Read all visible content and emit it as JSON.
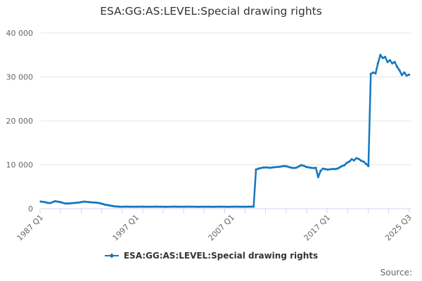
{
  "colors": {
    "series": "#1478be",
    "grid": "#e6e6e6",
    "axis": "#ccd6eb",
    "tick_text": "#666666",
    "title_text": "#333333",
    "legend_text": "#333333",
    "source_text": "#666666",
    "background": "#ffffff"
  },
  "source": {
    "text": "Source:"
  },
  "chart_data": {
    "type": "line",
    "title": "ESA:GG:AS:LEVEL:Special drawing rights",
    "xlabel": "",
    "ylabel": "",
    "x_start": "1987 Q1",
    "x_end": "2025 Q3",
    "frequency": "quarterly",
    "grid": true,
    "legend_position": "bottom",
    "y": {
      "range": [
        0,
        40000
      ],
      "ticks": [
        {
          "value": 0,
          "label": "0"
        },
        {
          "value": 10000,
          "label": "10 000"
        },
        {
          "value": 20000,
          "label": "20 000"
        },
        {
          "value": 30000,
          "label": "30 000"
        },
        {
          "value": 40000,
          "label": "40 000"
        }
      ]
    },
    "x": {
      "minor_tick_count": 19,
      "tick_labels": [
        {
          "text": "1987 Q1",
          "index": 0
        },
        {
          "text": "1997 Q1",
          "index": 40
        },
        {
          "text": "2007 Q1",
          "index": 80
        },
        {
          "text": "2017 Q1",
          "index": 120
        },
        {
          "text": "2025 Q3",
          "index": 154
        }
      ]
    },
    "series": [
      {
        "name": "ESA:GG:AS:LEVEL:Special drawing rights",
        "color": "#1478be",
        "values": [
          1600,
          1550,
          1450,
          1300,
          1280,
          1500,
          1700,
          1600,
          1500,
          1350,
          1200,
          1170,
          1200,
          1250,
          1300,
          1350,
          1400,
          1490,
          1600,
          1550,
          1500,
          1450,
          1400,
          1390,
          1300,
          1200,
          1050,
          900,
          800,
          700,
          600,
          520,
          480,
          450,
          440,
          450,
          460,
          450,
          440,
          430,
          440,
          450,
          460,
          450,
          440,
          430,
          440,
          450,
          460,
          450,
          440,
          430,
          420,
          430,
          440,
          450,
          460,
          450,
          440,
          430,
          440,
          450,
          460,
          450,
          440,
          430,
          420,
          430,
          440,
          450,
          440,
          430,
          420,
          430,
          440,
          450,
          440,
          430,
          420,
          430,
          440,
          450,
          460,
          450,
          440,
          430,
          440,
          460,
          450,
          470,
          8900,
          9100,
          9250,
          9350,
          9400,
          9350,
          9300,
          9400,
          9450,
          9500,
          9550,
          9650,
          9700,
          9600,
          9450,
          9300,
          9250,
          9350,
          9650,
          9900,
          9750,
          9500,
          9400,
          9300,
          9250,
          9300,
          7200,
          8600,
          9100,
          9000,
          8900,
          8950,
          9050,
          9000,
          9100,
          9400,
          9700,
          9900,
          10450,
          10700,
          11250,
          11000,
          11500,
          11300,
          10900,
          10700,
          10200,
          9700,
          30700,
          31000,
          30800,
          33100,
          35000,
          34300,
          34550,
          33400,
          33800,
          33100,
          33400,
          32300,
          31500,
          30450,
          31000,
          30300,
          30500
        ]
      }
    ]
  }
}
